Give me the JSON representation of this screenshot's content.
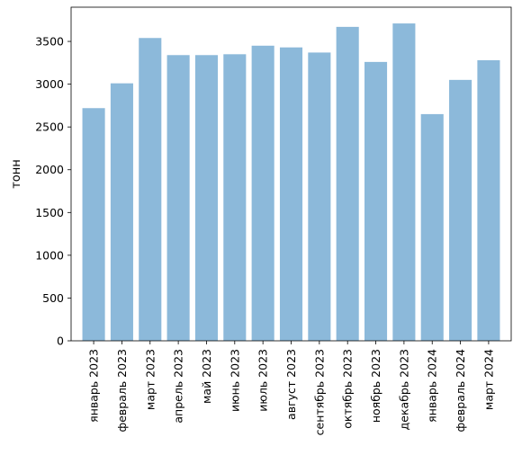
{
  "chart_data": {
    "type": "bar",
    "categories": [
      "январь 2023",
      "февраль 2023",
      "март 2023",
      "апрель 2023",
      "май 2023",
      "июнь 2023",
      "июль 2023",
      "август 2023",
      "сентябрь 2023",
      "октябрь 2023",
      "ноябрь 2023",
      "декабрь 2023",
      "январь 2024",
      "февраль 2024",
      "март 2024"
    ],
    "values": [
      2720,
      3010,
      3540,
      3340,
      3340,
      3350,
      3450,
      3430,
      3370,
      3670,
      3260,
      3710,
      2650,
      3050,
      3280
    ],
    "title": "",
    "xlabel": "",
    "ylabel": "тонн",
    "ylim": [
      0,
      3900
    ],
    "yticks": [
      0,
      500,
      1000,
      1500,
      2000,
      2500,
      3000,
      3500
    ],
    "grid": false,
    "colors": {
      "bar": "#8cb9da",
      "axis": "#000000"
    }
  }
}
